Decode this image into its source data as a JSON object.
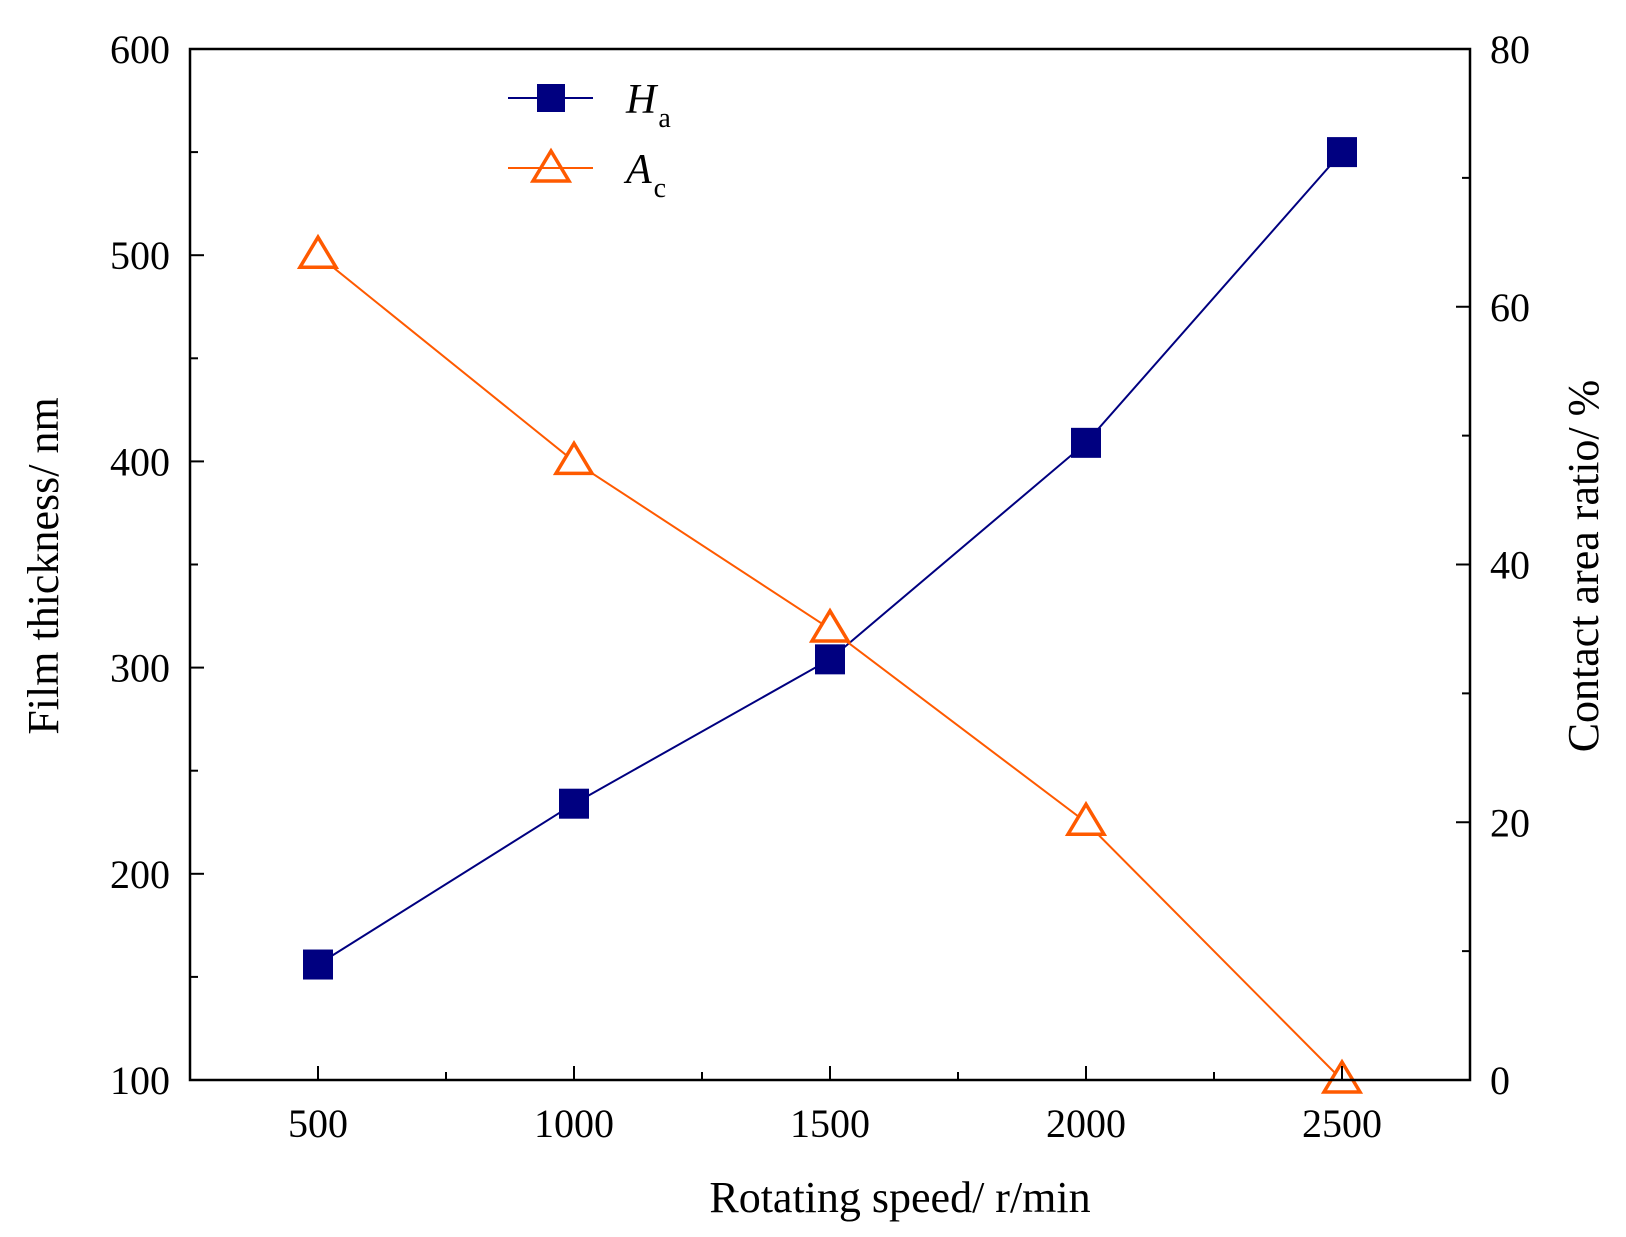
{
  "chart_data": {
    "type": "line",
    "title": "",
    "xlabel": "Rotating speed/ r/min",
    "ylabel_left": "Film thickness/ nm",
    "ylabel_right": "Contact area ratio/ %",
    "x": [
      500,
      1000,
      1500,
      2000,
      2500
    ],
    "xlim": [
      250,
      2750
    ],
    "x_ticks": [
      "500",
      "1000",
      "1500",
      "2000",
      "2500"
    ],
    "ylim_left": [
      100,
      600
    ],
    "y_ticks_left": [
      "100",
      "200",
      "300",
      "400",
      "500",
      "600"
    ],
    "ylim_right": [
      0,
      80
    ],
    "y_ticks_right": [
      "0",
      "20",
      "40",
      "60",
      "80"
    ],
    "grid": false,
    "legend_position": "top-left",
    "series": [
      {
        "name": "H",
        "subscript": "a",
        "axis": "left",
        "marker": "filled-square",
        "color": "#000080",
        "values": [
          156,
          234,
          304,
          409,
          550
        ]
      },
      {
        "name": "A",
        "subscript": "c",
        "axis": "right",
        "marker": "open-triangle",
        "color": "#ff5a00",
        "values": [
          64,
          48,
          35,
          20,
          0
        ]
      }
    ]
  }
}
